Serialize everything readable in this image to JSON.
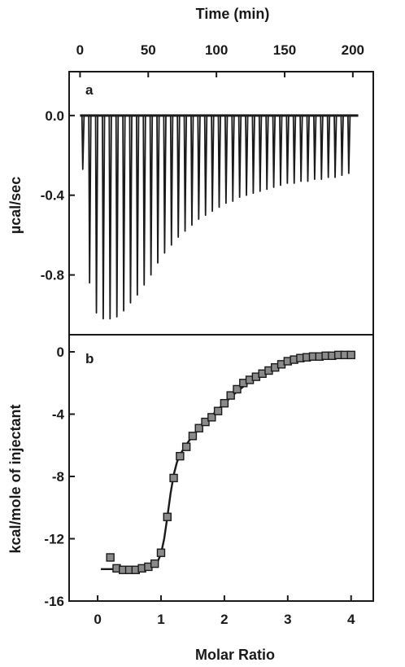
{
  "chart_data": [
    {
      "type": "line",
      "panel": "a",
      "xlabel": "Time (min)",
      "ylabel": "µcal/sec",
      "xlim": [
        -8,
        215
      ],
      "ylim": [
        -1.1,
        0.22
      ],
      "xticks": [
        0,
        50,
        100,
        150,
        200
      ],
      "yticks": [
        0.0,
        -0.4,
        -0.8
      ],
      "xtick_labels": [
        "0",
        "50",
        "100",
        "150",
        "200"
      ],
      "ytick_labels": [
        "0.0",
        "-0.4",
        "-0.8"
      ],
      "x_axis_position": "top",
      "baseline": 0.0,
      "baseline_range": [
        0,
        204
      ],
      "series": [
        {
          "injection_times_min": [
            2,
            7,
            12,
            17,
            22,
            27,
            32,
            37,
            42,
            47,
            52,
            57,
            62,
            67,
            72,
            77,
            82,
            87,
            92,
            97,
            102,
            107,
            112,
            117,
            122,
            127,
            132,
            137,
            142,
            147,
            152,
            157,
            162,
            167,
            172,
            177,
            182,
            187,
            192,
            197
          ],
          "peak_values": [
            -0.27,
            -0.84,
            -0.99,
            -1.02,
            -1.02,
            -1.01,
            -0.98,
            -0.94,
            -0.9,
            -0.85,
            -0.8,
            -0.74,
            -0.69,
            -0.65,
            -0.61,
            -0.58,
            -0.55,
            -0.52,
            -0.5,
            -0.48,
            -0.46,
            -0.44,
            -0.43,
            -0.41,
            -0.4,
            -0.39,
            -0.38,
            -0.37,
            -0.36,
            -0.35,
            -0.34,
            -0.34,
            -0.33,
            -0.33,
            -0.32,
            -0.32,
            -0.31,
            -0.31,
            -0.3,
            -0.29
          ]
        }
      ]
    },
    {
      "type": "scatter",
      "panel": "b",
      "xlabel": "Molar Ratio",
      "ylabel": "kcal/mole of injectant",
      "xlim": [
        -0.45,
        4.35
      ],
      "ylim": [
        -16,
        1.1
      ],
      "xticks": [
        0,
        1,
        2,
        3,
        4
      ],
      "yticks": [
        0,
        -4,
        -8,
        -12,
        -16
      ],
      "xtick_labels": [
        "0",
        "1",
        "2",
        "3",
        "4"
      ],
      "ytick_labels": [
        "0",
        "-4",
        "-8",
        "-12",
        "-16"
      ],
      "series": [
        {
          "kind": "points",
          "marker": "square",
          "x": [
            0.2,
            0.3,
            0.4,
            0.5,
            0.6,
            0.7,
            0.8,
            0.9,
            1.0,
            1.1,
            1.2,
            1.3,
            1.4,
            1.5,
            1.6,
            1.7,
            1.8,
            1.9,
            2.0,
            2.1,
            2.2,
            2.3,
            2.4,
            2.5,
            2.6,
            2.7,
            2.8,
            2.9,
            3.0,
            3.1,
            3.2,
            3.3,
            3.4,
            3.5,
            3.6,
            3.7,
            3.8,
            3.9,
            4.0
          ],
          "y": [
            -13.2,
            -13.9,
            -14.0,
            -14.0,
            -14.0,
            -13.9,
            -13.8,
            -13.6,
            -12.9,
            -10.6,
            -8.1,
            -6.7,
            -6.1,
            -5.4,
            -4.9,
            -4.5,
            -4.2,
            -3.8,
            -3.3,
            -2.8,
            -2.4,
            -2.0,
            -1.8,
            -1.6,
            -1.4,
            -1.2,
            -1.0,
            -0.8,
            -0.6,
            -0.5,
            -0.4,
            -0.35,
            -0.3,
            -0.3,
            -0.25,
            -0.25,
            -0.2,
            -0.2,
            -0.2
          ]
        },
        {
          "kind": "fit",
          "x": [
            0.05,
            0.3,
            0.5,
            0.7,
            0.85,
            0.95,
            1.0,
            1.05,
            1.1,
            1.15,
            1.2,
            1.25,
            1.3,
            1.4,
            1.5,
            1.6,
            1.8,
            2.0,
            2.2,
            2.4,
            2.6,
            2.8,
            3.0,
            3.2,
            3.4,
            3.6,
            3.8,
            4.0
          ],
          "y": [
            -13.95,
            -13.95,
            -13.95,
            -13.9,
            -13.75,
            -13.45,
            -12.95,
            -12.0,
            -10.6,
            -9.1,
            -7.9,
            -7.1,
            -6.6,
            -5.95,
            -5.4,
            -4.95,
            -4.1,
            -3.3,
            -2.55,
            -1.9,
            -1.35,
            -0.95,
            -0.6,
            -0.4,
            -0.27,
            -0.2,
            -0.16,
            -0.14
          ]
        }
      ]
    }
  ],
  "labels": {
    "panel_a": "a",
    "panel_b": "b"
  }
}
